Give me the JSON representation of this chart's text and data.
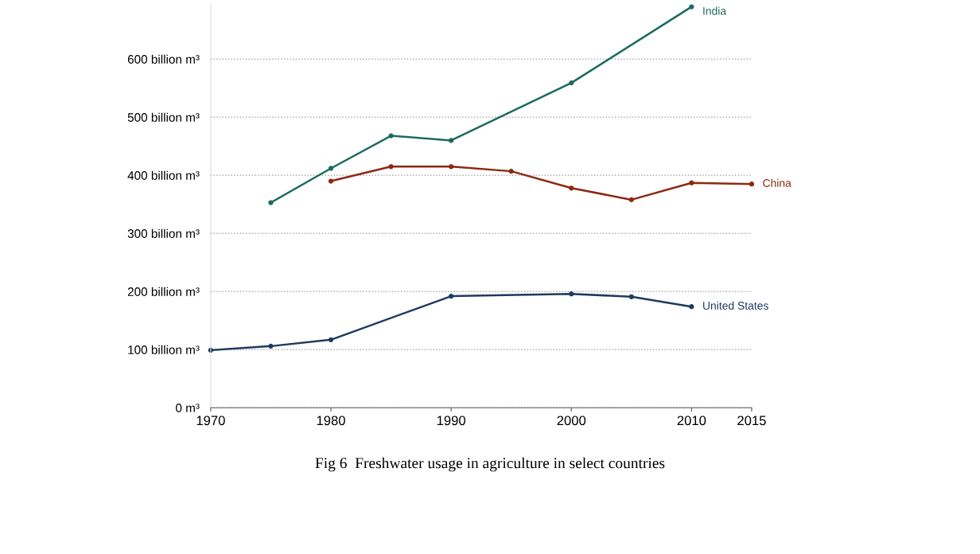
{
  "chart_data": {
    "type": "line",
    "marker": "circle",
    "line_style": "solid",
    "grid": "y",
    "legend": false,
    "xlim": [
      1970,
      2015
    ],
    "xticks": [
      1970,
      1980,
      1990,
      2000,
      2010,
      2015
    ],
    "ylim": [
      0,
      695
    ],
    "yticks": [
      {
        "value": 0,
        "label": "0 m³"
      },
      {
        "value": 100,
        "label": "100 billion m³"
      },
      {
        "value": 200,
        "label": "200 billion m³"
      },
      {
        "value": 300,
        "label": "300 billion m³"
      },
      {
        "value": 400,
        "label": "400 billion m³"
      },
      {
        "value": 500,
        "label": "500 billion m³"
      },
      {
        "value": 600,
        "label": "600 billion m³"
      }
    ],
    "series": [
      {
        "name": "India",
        "color": "#1d6b5e",
        "x": [
          1975,
          1980,
          1985,
          1990,
          2000,
          2010
        ],
        "values": [
          353,
          412,
          468,
          460,
          559,
          690
        ]
      },
      {
        "name": "China",
        "color": "#8b2a12",
        "x": [
          1980,
          1985,
          1990,
          1995,
          2000,
          2005,
          2010,
          2015
        ],
        "values": [
          390,
          415,
          415,
          407,
          378,
          358,
          387,
          385
        ]
      },
      {
        "name": "United States",
        "color": "#1f3a5f",
        "x": [
          1970,
          1975,
          1980,
          1990,
          2000,
          2005,
          2010
        ],
        "values": [
          99,
          106,
          117,
          192,
          196,
          191,
          174
        ]
      }
    ],
    "annotations": [
      "Fig 6  Freshwater usage in agriculture in select countries"
    ]
  }
}
